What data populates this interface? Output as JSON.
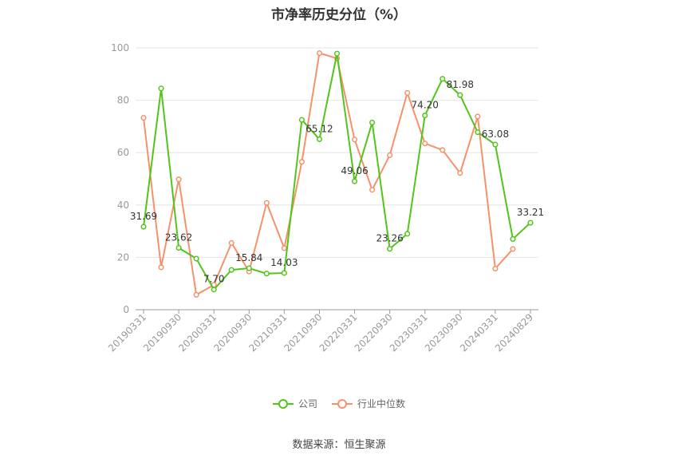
{
  "title": "市净率历史分位（%）",
  "source": "数据来源：恒生聚源",
  "legend": [
    {
      "label": "公司",
      "color": "#52c41a"
    },
    {
      "label": "行业中位数",
      "color": "#f5926b"
    }
  ],
  "chart_data": {
    "type": "line",
    "title": "市净率历史分位（%）",
    "ylim": [
      0,
      100
    ],
    "yticks": [
      0,
      20,
      40,
      60,
      80,
      100
    ],
    "x_tick_labels": [
      "20190331",
      "20190930",
      "20200331",
      "20200930",
      "20210331",
      "20210930",
      "20220331",
      "20220930",
      "20230331",
      "20230930",
      "20240331",
      "20240829"
    ],
    "grid": true,
    "legend_position": "bottom",
    "series": [
      {
        "name": "公司",
        "color": "#52c41a",
        "values": [
          31.69,
          84.5,
          23.62,
          19.5,
          7.7,
          15.2,
          15.84,
          13.8,
          14.03,
          72.5,
          65.12,
          97.8,
          49.06,
          71.5,
          23.26,
          29.0,
          74.2,
          88.2,
          81.98,
          67.8,
          63.08,
          27.0,
          33.21
        ],
        "labels": {
          "0": "31.69",
          "2": "23.62",
          "4": "7.70",
          "6": "15.84",
          "8": "14.03",
          "10": "65.12",
          "12": "49.06",
          "14": "23.26",
          "16": "74.20",
          "18": "81.98",
          "20": "63.08",
          "22": "33.21"
        }
      },
      {
        "name": "行业中位数",
        "color": "#f5926b",
        "values": [
          73.3,
          16.2,
          49.8,
          5.7,
          9.5,
          25.5,
          14.6,
          40.8,
          23.5,
          56.5,
          98.0,
          96.0,
          65.0,
          45.8,
          59.0,
          82.8,
          63.5,
          61.0,
          52.2,
          73.8,
          15.7,
          23.2,
          null
        ]
      }
    ]
  }
}
